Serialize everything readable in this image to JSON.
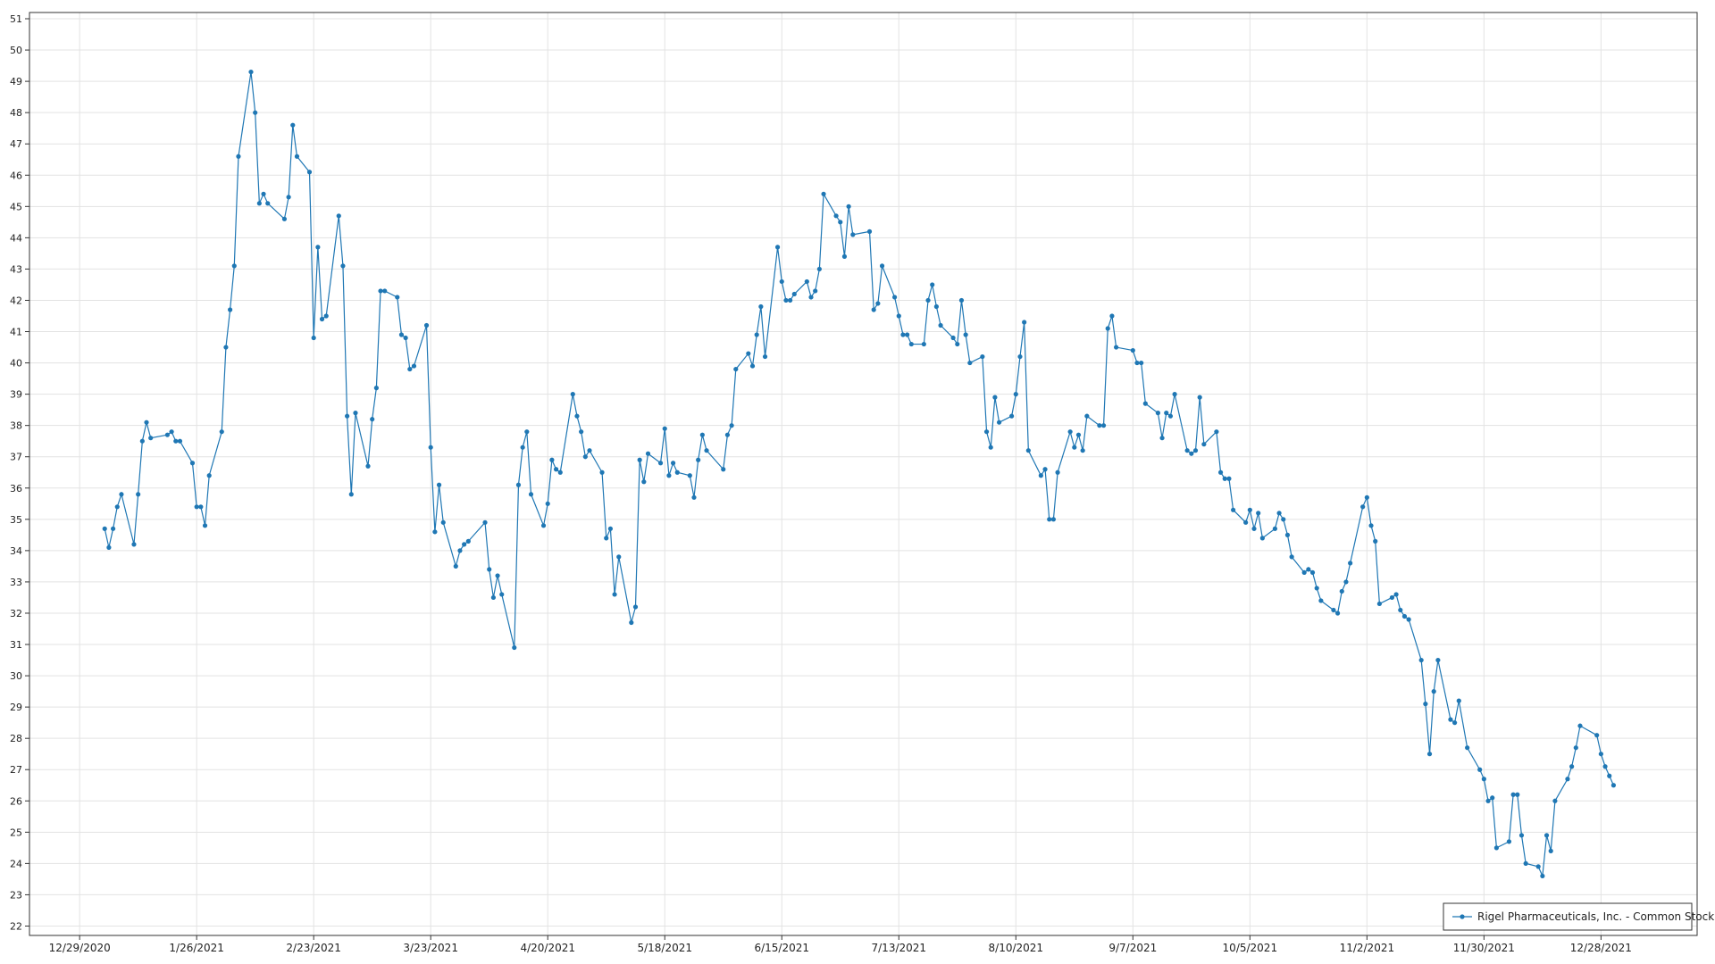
{
  "chart_data": {
    "type": "line",
    "x": [
      "1/4/2021",
      "1/5/2021",
      "1/6/2021",
      "1/7/2021",
      "1/8/2021",
      "1/11/2021",
      "1/12/2021",
      "1/13/2021",
      "1/14/2021",
      "1/15/2021",
      "1/19/2021",
      "1/20/2021",
      "1/21/2021",
      "1/22/2021",
      "1/25/2021",
      "1/26/2021",
      "1/27/2021",
      "1/28/2021",
      "1/29/2021",
      "2/1/2021",
      "2/2/2021",
      "2/3/2021",
      "2/4/2021",
      "2/5/2021",
      "2/8/2021",
      "2/9/2021",
      "2/10/2021",
      "2/11/2021",
      "2/12/2021",
      "2/16/2021",
      "2/17/2021",
      "2/18/2021",
      "2/19/2021",
      "2/22/2021",
      "2/23/2021",
      "2/24/2021",
      "2/25/2021",
      "2/26/2021",
      "3/1/2021",
      "3/2/2021",
      "3/3/2021",
      "3/4/2021",
      "3/5/2021",
      "3/8/2021",
      "3/9/2021",
      "3/10/2021",
      "3/11/2021",
      "3/12/2021",
      "3/15/2021",
      "3/16/2021",
      "3/17/2021",
      "3/18/2021",
      "3/19/2021",
      "3/22/2021",
      "3/23/2021",
      "3/24/2021",
      "3/25/2021",
      "3/26/2021",
      "3/29/2021",
      "3/30/2021",
      "3/31/2021",
      "4/1/2021",
      "4/5/2021",
      "4/6/2021",
      "4/7/2021",
      "4/8/2021",
      "4/9/2021",
      "4/12/2021",
      "4/13/2021",
      "4/14/2021",
      "4/15/2021",
      "4/16/2021",
      "4/19/2021",
      "4/20/2021",
      "4/21/2021",
      "4/22/2021",
      "4/23/2021",
      "4/26/2021",
      "4/27/2021",
      "4/28/2021",
      "4/29/2021",
      "4/30/2021",
      "5/3/2021",
      "5/4/2021",
      "5/5/2021",
      "5/6/2021",
      "5/7/2021",
      "5/10/2021",
      "5/11/2021",
      "5/12/2021",
      "5/13/2021",
      "5/14/2021",
      "5/17/2021",
      "5/18/2021",
      "5/19/2021",
      "5/20/2021",
      "5/21/2021",
      "5/24/2021",
      "5/25/2021",
      "5/26/2021",
      "5/27/2021",
      "5/28/2021",
      "6/1/2021",
      "6/2/2021",
      "6/3/2021",
      "6/4/2021",
      "6/7/2021",
      "6/8/2021",
      "6/9/2021",
      "6/10/2021",
      "6/11/2021",
      "6/14/2021",
      "6/15/2021",
      "6/16/2021",
      "6/17/2021",
      "6/18/2021",
      "6/21/2021",
      "6/22/2021",
      "6/23/2021",
      "6/24/2021",
      "6/25/2021",
      "6/28/2021",
      "6/29/2021",
      "6/30/2021",
      "7/1/2021",
      "7/2/2021",
      "7/6/2021",
      "7/7/2021",
      "7/8/2021",
      "7/9/2021",
      "7/12/2021",
      "7/13/2021",
      "7/14/2021",
      "7/15/2021",
      "7/16/2021",
      "7/19/2021",
      "7/20/2021",
      "7/21/2021",
      "7/22/2021",
      "7/23/2021",
      "7/26/2021",
      "7/27/2021",
      "7/28/2021",
      "7/29/2021",
      "7/30/2021",
      "8/2/2021",
      "8/3/2021",
      "8/4/2021",
      "8/5/2021",
      "8/6/2021",
      "8/9/2021",
      "8/10/2021",
      "8/11/2021",
      "8/12/2021",
      "8/13/2021",
      "8/16/2021",
      "8/17/2021",
      "8/18/2021",
      "8/19/2021",
      "8/20/2021",
      "8/23/2021",
      "8/24/2021",
      "8/25/2021",
      "8/26/2021",
      "8/27/2021",
      "8/30/2021",
      "8/31/2021",
      "9/1/2021",
      "9/2/2021",
      "9/3/2021",
      "9/7/2021",
      "9/8/2021",
      "9/9/2021",
      "9/10/2021",
      "9/13/2021",
      "9/14/2021",
      "9/15/2021",
      "9/16/2021",
      "9/17/2021",
      "9/20/2021",
      "9/21/2021",
      "9/22/2021",
      "9/23/2021",
      "9/24/2021",
      "9/27/2021",
      "9/28/2021",
      "9/29/2021",
      "9/30/2021",
      "10/1/2021",
      "10/4/2021",
      "10/5/2021",
      "10/6/2021",
      "10/7/2021",
      "10/8/2021",
      "10/11/2021",
      "10/12/2021",
      "10/13/2021",
      "10/14/2021",
      "10/15/2021",
      "10/18/2021",
      "10/19/2021",
      "10/20/2021",
      "10/21/2021",
      "10/22/2021",
      "10/25/2021",
      "10/26/2021",
      "10/27/2021",
      "10/28/2021",
      "10/29/2021",
      "11/1/2021",
      "11/2/2021",
      "11/3/2021",
      "11/4/2021",
      "11/5/2021",
      "11/8/2021",
      "11/9/2021",
      "11/10/2021",
      "11/11/2021",
      "11/12/2021",
      "11/15/2021",
      "11/16/2021",
      "11/17/2021",
      "11/18/2021",
      "11/19/2021",
      "11/22/2021",
      "11/23/2021",
      "11/24/2021",
      "11/26/2021",
      "11/29/2021",
      "11/30/2021",
      "12/1/2021",
      "12/2/2021",
      "12/3/2021",
      "12/6/2021",
      "12/7/2021",
      "12/8/2021",
      "12/9/2021",
      "12/10/2021",
      "12/13/2021",
      "12/14/2021",
      "12/15/2021",
      "12/16/2021",
      "12/17/2021",
      "12/20/2021",
      "12/21/2021",
      "12/22/2021",
      "12/23/2021",
      "12/27/2021",
      "12/28/2021",
      "12/29/2021",
      "12/30/2021",
      "12/31/2021"
    ],
    "series": [
      {
        "name": "Rigel Pharmaceuticals, Inc. - Common Stock",
        "color": "#1f77b4",
        "values": [
          34.7,
          34.1,
          34.7,
          35.4,
          35.8,
          34.2,
          35.8,
          37.5,
          38.1,
          37.6,
          37.7,
          37.8,
          37.5,
          37.5,
          36.8,
          35.4,
          35.4,
          34.8,
          36.4,
          37.8,
          40.5,
          41.7,
          43.1,
          46.6,
          49.3,
          48.0,
          45.1,
          45.4,
          45.1,
          44.6,
          45.3,
          47.6,
          46.6,
          46.1,
          40.8,
          43.7,
          41.4,
          41.5,
          44.7,
          43.1,
          38.3,
          35.8,
          38.4,
          36.7,
          38.2,
          39.2,
          42.3,
          42.3,
          42.1,
          40.9,
          40.8,
          39.8,
          39.9,
          41.2,
          37.3,
          34.6,
          36.1,
          34.9,
          33.5,
          34.0,
          34.2,
          34.3,
          34.9,
          33.4,
          32.5,
          33.2,
          32.6,
          30.9,
          36.1,
          37.3,
          37.8,
          35.8,
          34.8,
          35.5,
          36.9,
          36.6,
          36.5,
          39.0,
          38.3,
          37.8,
          37.0,
          37.2,
          36.5,
          34.4,
          34.7,
          32.6,
          33.8,
          31.7,
          32.2,
          36.9,
          36.2,
          37.1,
          36.8,
          37.9,
          36.4,
          36.8,
          36.5,
          36.4,
          35.7,
          36.9,
          37.7,
          37.2,
          36.6,
          37.7,
          38.0,
          39.8,
          40.3,
          39.9,
          40.9,
          41.8,
          40.2,
          43.7,
          42.6,
          42.0,
          42.0,
          42.2,
          42.6,
          42.1,
          42.3,
          43.0,
          45.4,
          44.7,
          44.5,
          43.4,
          45.0,
          44.1,
          44.2,
          41.7,
          41.9,
          43.1,
          42.1,
          41.5,
          40.9,
          40.9,
          40.6,
          40.6,
          42.0,
          42.5,
          41.8,
          41.2,
          40.8,
          40.6,
          42.0,
          40.9,
          40.0,
          40.2,
          37.8,
          37.3,
          38.9,
          38.1,
          38.3,
          39.0,
          40.2,
          41.3,
          37.2,
          36.4,
          36.6,
          35.0,
          35.0,
          36.5,
          37.8,
          37.3,
          37.7,
          37.2,
          38.3,
          38.0,
          38.0,
          41.1,
          41.5,
          40.5,
          40.4,
          40.0,
          40.0,
          38.7,
          38.4,
          37.6,
          38.4,
          38.3,
          39.0,
          37.2,
          37.1,
          37.2,
          38.9,
          37.4,
          37.8,
          36.5,
          36.3,
          36.3,
          35.3,
          34.9,
          35.3,
          34.7,
          35.2,
          34.4,
          34.7,
          35.2,
          35.0,
          34.5,
          33.8,
          33.3,
          33.4,
          33.3,
          32.8,
          32.4,
          32.1,
          32.0,
          32.7,
          33.0,
          33.6,
          35.4,
          35.7,
          34.8,
          34.3,
          32.3,
          32.5,
          32.6,
          32.1,
          31.9,
          31.8,
          30.5,
          29.1,
          27.5,
          29.5,
          30.5,
          28.6,
          28.5,
          29.2,
          27.7,
          27.0,
          26.7,
          26.0,
          26.1,
          24.5,
          24.7,
          26.2,
          26.2,
          24.9,
          24.0,
          23.9,
          23.6,
          24.9,
          24.4,
          26.0,
          26.7,
          27.1,
          27.7,
          28.4,
          28.1,
          27.5,
          27.1,
          26.8,
          26.5
        ]
      }
    ],
    "xlim": [
      "12/17/2020",
      "1/20/2022"
    ],
    "xticks": [
      "12/29/2020",
      "1/26/2021",
      "2/23/2021",
      "3/23/2021",
      "4/20/2021",
      "5/18/2021",
      "6/15/2021",
      "7/13/2021",
      "8/10/2021",
      "9/7/2021",
      "10/5/2021",
      "11/2/2021",
      "11/30/2021",
      "12/28/2021"
    ],
    "ylim": [
      21.7,
      51.2
    ],
    "yticks": [
      22,
      23,
      24,
      25,
      26,
      27,
      28,
      29,
      30,
      31,
      32,
      33,
      34,
      35,
      36,
      37,
      38,
      39,
      40,
      41,
      42,
      43,
      44,
      45,
      46,
      47,
      48,
      49,
      50,
      51
    ],
    "grid": true,
    "legend": "bottom-right"
  }
}
